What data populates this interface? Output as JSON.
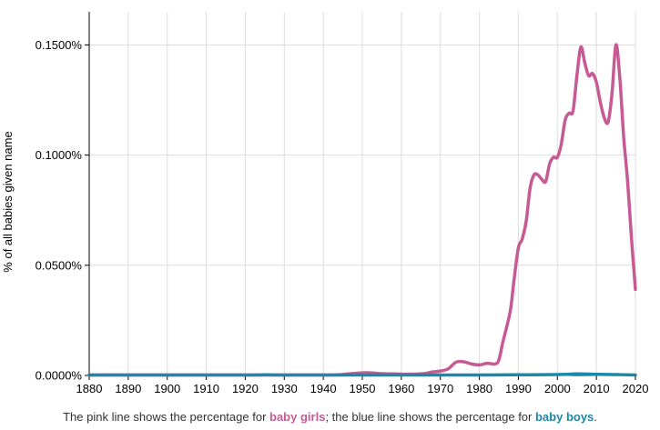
{
  "chart_data": {
    "type": "line",
    "xlabel": "",
    "ylabel": "% of all babies given name",
    "xlim": [
      1880,
      2020
    ],
    "ylim": [
      0,
      0.165
    ],
    "x_ticks": [
      "1880",
      "1890",
      "1900",
      "1910",
      "1920",
      "1930",
      "1940",
      "1950",
      "1960",
      "1970",
      "1980",
      "1990",
      "2000",
      "2010",
      "2020"
    ],
    "y_ticks": [
      {
        "value": 0,
        "label": "0.0000%"
      },
      {
        "value": 0.05,
        "label": "0.0500%"
      },
      {
        "value": 0.1,
        "label": "0.1000%"
      },
      {
        "value": 0.15,
        "label": "0.1500%"
      }
    ],
    "grid": true,
    "series": [
      {
        "color": "#c75a94",
        "points": [
          [
            1880,
            0
          ],
          [
            1900,
            0
          ],
          [
            1920,
            0
          ],
          [
            1940,
            0
          ],
          [
            1944,
            0.0003
          ],
          [
            1947,
            0.0008
          ],
          [
            1950,
            0.0012
          ],
          [
            1952,
            0.0012
          ],
          [
            1955,
            0.0008
          ],
          [
            1958,
            0.0007
          ],
          [
            1960,
            0.0006
          ],
          [
            1963,
            0.0006
          ],
          [
            1966,
            0.0009
          ],
          [
            1968,
            0.0016
          ],
          [
            1970,
            0.002
          ],
          [
            1972,
            0.003
          ],
          [
            1974,
            0.006
          ],
          [
            1976,
            0.0062
          ],
          [
            1978,
            0.0052
          ],
          [
            1980,
            0.0048
          ],
          [
            1982,
            0.0055
          ],
          [
            1984,
            0.0052
          ],
          [
            1985,
            0.007
          ],
          [
            1986,
            0.015
          ],
          [
            1987,
            0.022
          ],
          [
            1988,
            0.03
          ],
          [
            1989,
            0.045
          ],
          [
            1990,
            0.058
          ],
          [
            1991,
            0.062
          ],
          [
            1992,
            0.07
          ],
          [
            1993,
            0.085
          ],
          [
            1994,
            0.091
          ],
          [
            1995,
            0.091
          ],
          [
            1996,
            0.089
          ],
          [
            1997,
            0.088
          ],
          [
            1998,
            0.096
          ],
          [
            1999,
            0.099
          ],
          [
            2000,
            0.099
          ],
          [
            2001,
            0.105
          ],
          [
            2002,
            0.116
          ],
          [
            2003,
            0.119
          ],
          [
            2004,
            0.12
          ],
          [
            2005,
            0.136
          ],
          [
            2006,
            0.149
          ],
          [
            2007,
            0.142
          ],
          [
            2008,
            0.136
          ],
          [
            2009,
            0.137
          ],
          [
            2010,
            0.133
          ],
          [
            2011,
            0.124
          ],
          [
            2012,
            0.117
          ],
          [
            2013,
            0.115
          ],
          [
            2014,
            0.128
          ],
          [
            2015,
            0.15
          ],
          [
            2016,
            0.135
          ],
          [
            2017,
            0.108
          ],
          [
            2018,
            0.088
          ],
          [
            2019,
            0.062
          ],
          [
            2020,
            0.039
          ]
        ]
      },
      {
        "color": "#1c88a8",
        "points": [
          [
            1880,
            0
          ],
          [
            1920,
            0
          ],
          [
            1925,
            0.0003
          ],
          [
            1930,
            0
          ],
          [
            1940,
            0
          ],
          [
            1950,
            0.0001
          ],
          [
            1960,
            0.0002
          ],
          [
            1970,
            0.0001
          ],
          [
            1980,
            0.0002
          ],
          [
            1990,
            0.0003
          ],
          [
            2000,
            0.0004
          ],
          [
            2005,
            0.0007
          ],
          [
            2010,
            0.0005
          ],
          [
            2015,
            0.0004
          ],
          [
            2020,
            0.0002
          ]
        ]
      }
    ]
  },
  "caption": {
    "prefix": "The pink line shows the percentage for ",
    "girls": "baby girls",
    "middle": "; the blue line shows the percentage for ",
    "boys": "baby boys",
    "suffix": "."
  }
}
